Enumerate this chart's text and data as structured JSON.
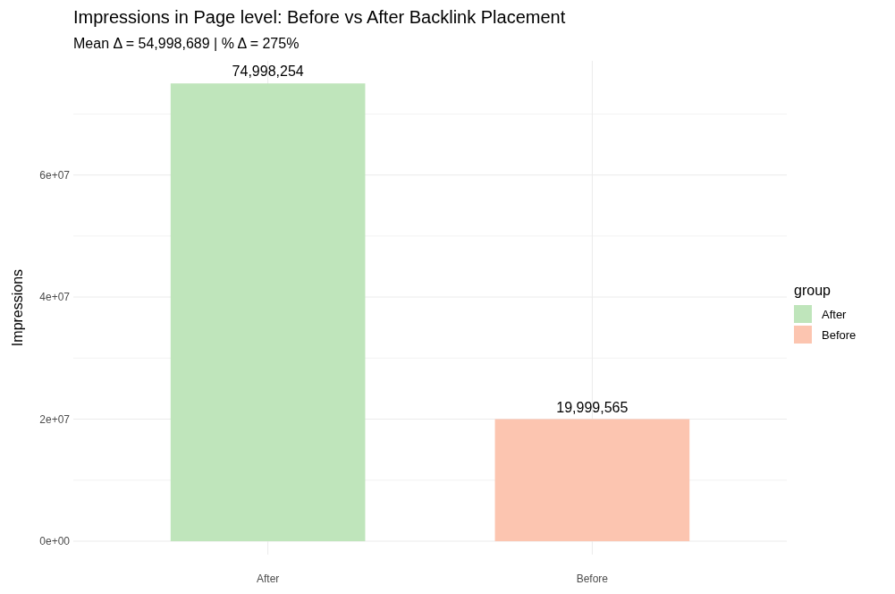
{
  "chart_data": {
    "type": "bar",
    "title": "Impressions in Page level: Before vs After Backlink Placement",
    "subtitle": "Mean Δ = 54,998,689 | % Δ = 275%",
    "ylabel": "Impressions",
    "categories": [
      "After",
      "Before"
    ],
    "series": [
      {
        "name": "After",
        "color": "#bfe5bb",
        "values": [
          74998254,
          null
        ],
        "value_labels": [
          "74,998,254",
          null
        ]
      },
      {
        "name": "Before",
        "color": "#fcc5b0",
        "values": [
          null,
          19999565
        ],
        "value_labels": [
          null,
          "19,999,565"
        ]
      }
    ],
    "legend": "right",
    "legend_title": "group",
    "ylim": [
      -2200000,
      78700000
    ],
    "yticks": [
      {
        "value": 0,
        "label": "0e+00"
      },
      {
        "value": 10000000,
        "label": null
      },
      {
        "value": 20000000,
        "label": "2e+07"
      },
      {
        "value": 30000000,
        "label": null
      },
      {
        "value": 40000000,
        "label": "4e+07"
      },
      {
        "value": 50000000,
        "label": null
      },
      {
        "value": 60000000,
        "label": "6e+07"
      },
      {
        "value": 70000000,
        "label": null
      }
    ],
    "grid": true
  }
}
